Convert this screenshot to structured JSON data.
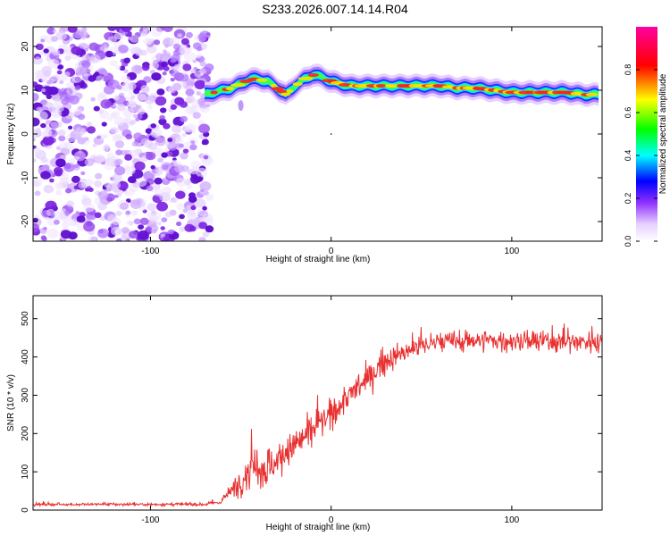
{
  "title": "S233.2026.007.14.14.R04",
  "chart_data": [
    {
      "type": "heatmap",
      "title": "S233.2026.007.14.14.R04",
      "xlabel": "Height of straight line (km)",
      "ylabel": "Frequency (Hz)",
      "xlim": [
        -165,
        150
      ],
      "ylim": [
        -24.5,
        24.5
      ],
      "xticks": [
        -100,
        0,
        100
      ],
      "yticks": [
        20,
        10,
        0,
        -10,
        -20
      ],
      "noise_region_x": [
        -165,
        -70
      ],
      "ridge": {
        "x": [
          -70,
          -65,
          -60,
          -55,
          -50,
          -45,
          -40,
          -35,
          -30,
          -25,
          -20,
          -15,
          -10,
          -5,
          0,
          5,
          10,
          20,
          40,
          60,
          70,
          80,
          90,
          100,
          110,
          120,
          130,
          140,
          148
        ],
        "freq": [
          9,
          9.5,
          10,
          10.5,
          11.5,
          12.5,
          12.5,
          12,
          10.5,
          9,
          11,
          12.5,
          13.5,
          13,
          12,
          11.5,
          11,
          11,
          11,
          11,
          10.5,
          10.5,
          10,
          9.5,
          9.5,
          9.5,
          9.5,
          9,
          9
        ]
      },
      "colorbar": {
        "label": "Normalized spectral amplitude",
        "ticks": [
          0.0,
          0.2,
          0.4,
          0.6,
          0.8
        ],
        "range": [
          0,
          1
        ],
        "colors": [
          "#ffffff",
          "#c080ff",
          "#0000ff",
          "#00ffff",
          "#00ff00",
          "#ffff00",
          "#ff0000",
          "#ff00a0"
        ]
      }
    },
    {
      "type": "line",
      "xlabel": "Height of straight line (km)",
      "ylabel": "SNR (10 * v/v)",
      "xlim": [
        -165,
        150
      ],
      "ylim": [
        0,
        560
      ],
      "xticks": [
        -100,
        0,
        100
      ],
      "yticks": [
        0,
        100,
        200,
        300,
        400,
        500
      ],
      "series": [
        {
          "name": "SNR",
          "color": "#e83030",
          "x": [
            -165,
            -140,
            -100,
            -70,
            -62,
            -55,
            -50,
            -45,
            -40,
            -35,
            -30,
            -20,
            -10,
            0,
            10,
            20,
            30,
            40,
            50,
            60,
            70,
            80,
            100,
            120,
            140,
            150
          ],
          "mean": [
            15,
            15,
            15,
            15,
            20,
            50,
            80,
            100,
            120,
            110,
            130,
            170,
            210,
            250,
            300,
            340,
            390,
            410,
            430,
            440,
            440,
            445,
            440,
            440,
            440,
            440
          ],
          "noise": [
            5,
            5,
            5,
            5,
            8,
            25,
            45,
            60,
            80,
            60,
            60,
            55,
            50,
            45,
            45,
            45,
            40,
            35,
            35,
            35,
            35,
            35,
            35,
            35,
            35,
            35
          ]
        }
      ]
    }
  ]
}
